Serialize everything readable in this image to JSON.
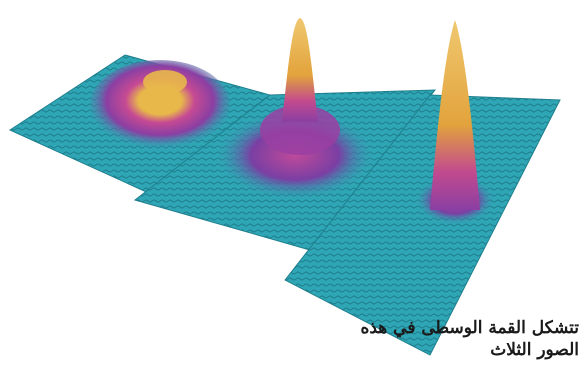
{
  "figure": {
    "panels": [
      {
        "name": "panel-left",
        "peak": "broad-dome"
      },
      {
        "name": "panel-middle",
        "peak": "sharp-spike-with-pedestal"
      },
      {
        "name": "panel-right",
        "peak": "sharp-spike"
      }
    ],
    "colors": {
      "surface": "#2fa6b5",
      "surface_dark": "#1e7f8d",
      "magenta": "#b93a9b",
      "purple": "#6a3fa6",
      "yellow": "#e8b84a"
    }
  },
  "caption": {
    "text": "تتشكل القمة الوسطى في هذه الصور الثلاث"
  }
}
